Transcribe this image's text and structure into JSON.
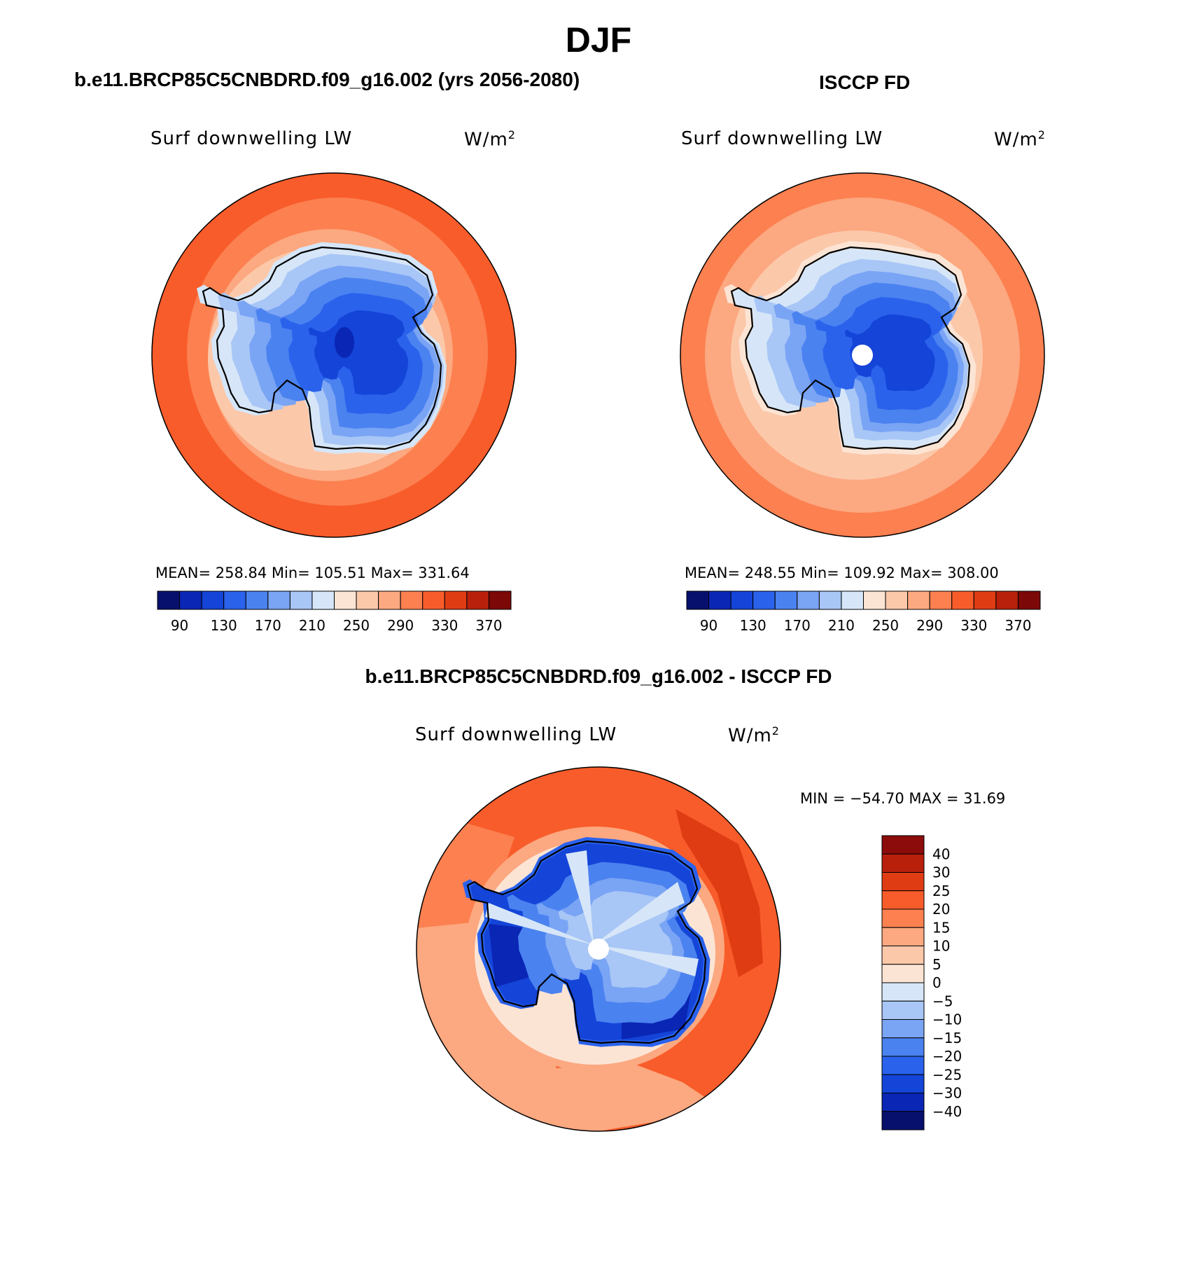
{
  "title": "DJF",
  "panels": {
    "model": {
      "case_title": "b.e11.BRCP85C5CNBDRD.f09_g16.002 (yrs 2056-2080)",
      "variable": "Surf downwelling LW",
      "units": "W/m",
      "units_sup": "2",
      "stats": "MEAN= 258.84   Min= 105.51   Max= 331.64",
      "mean": 258.84,
      "min": 105.51,
      "max": 331.64
    },
    "obs": {
      "case_title": "ISCCP FD",
      "variable": "Surf downwelling LW",
      "units": "W/m",
      "units_sup": "2",
      "stats": "MEAN= 248.55   Min= 109.92   Max= 308.00",
      "mean": 248.55,
      "min": 109.92,
      "max": 308.0
    },
    "diff": {
      "case_title": "b.e11.BRCP85C5CNBDRD.f09_g16.002 - ISCCP FD",
      "variable": "Surf downwelling LW",
      "units": "W/m",
      "units_sup": "2",
      "stats": "MIN = −54.70 MAX =   31.69",
      "min": -54.7,
      "max": 31.69
    }
  },
  "colorbars": {
    "abs": {
      "labels": [
        "90",
        "130",
        "170",
        "210",
        "250",
        "290",
        "330",
        "370"
      ],
      "colors": [
        "#08106e",
        "#0a26b4",
        "#1444d8",
        "#2a62ec",
        "#4a82f0",
        "#7aa4f4",
        "#a8c6f6",
        "#d6e6f8",
        "#fce4d4",
        "#fcc8aa",
        "#fca880",
        "#fc8050",
        "#f85c2a",
        "#e03c14",
        "#b8200c",
        "#7c0808"
      ]
    },
    "diff": {
      "labels": [
        "40",
        "30",
        "25",
        "20",
        "15",
        "10",
        "5",
        "0",
        "−5",
        "−10",
        "−15",
        "−20",
        "−25",
        "−30",
        "−40"
      ],
      "colors": [
        "#8c0c0c",
        "#b8200c",
        "#e03c14",
        "#f85c2a",
        "#fc8050",
        "#fca880",
        "#fcc8aa",
        "#fce4d4",
        "#d6e6f8",
        "#a8c6f6",
        "#7aa4f4",
        "#4a82f0",
        "#2a62ec",
        "#1444d8",
        "#0a26b4",
        "#08106e"
      ]
    }
  }
}
